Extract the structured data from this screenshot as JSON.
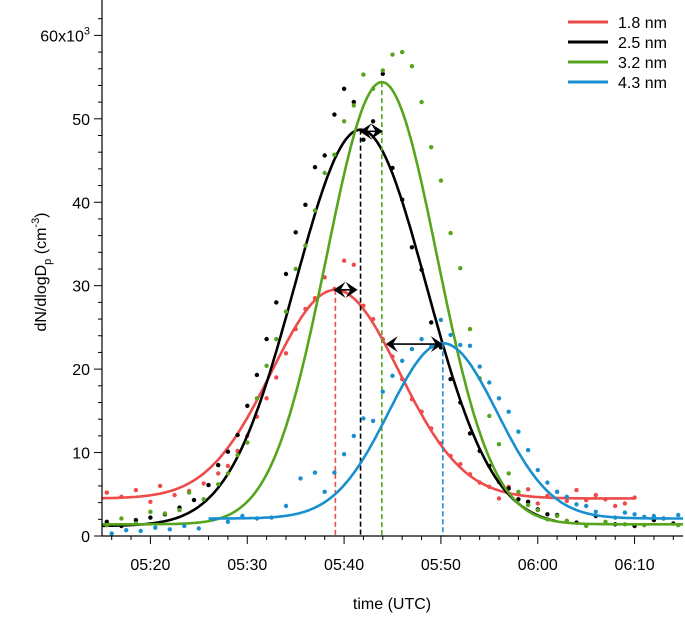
{
  "chart_data": {
    "type": "line",
    "title": "",
    "xlabel": "time (UTC)",
    "ylabel": "dN/dlogD",
    "ylabel_sub": "p",
    "ylabel_unit_open": " (cm",
    "ylabel_unit_sup": "-3",
    "ylabel_unit_close": ")",
    "xlim": [
      315,
      375
    ],
    "ylim": [
      0,
      64000
    ],
    "grid": false,
    "legend_position": "top-right",
    "x_ticks": [
      {
        "value": 320,
        "label": "05:20"
      },
      {
        "value": 330,
        "label": "05:30"
      },
      {
        "value": 340,
        "label": "05:40"
      },
      {
        "value": 350,
        "label": "05:50"
      },
      {
        "value": 360,
        "label": "06:00"
      },
      {
        "value": 370,
        "label": "06:10"
      }
    ],
    "y_ticks": [
      {
        "value": 0,
        "label": "0"
      },
      {
        "value": 10000,
        "label": "10"
      },
      {
        "value": 20000,
        "label": "20"
      },
      {
        "value": 30000,
        "label": "30"
      },
      {
        "value": 40000,
        "label": "40"
      },
      {
        "value": 50000,
        "label": "50"
      },
      {
        "value": 60000,
        "label": "60x10",
        "sup": "3"
      }
    ],
    "series": [
      {
        "name": "1.8 nm",
        "color": "#ee4b4b",
        "fit": {
          "baseline": 4500,
          "amplitude": 25000,
          "center": 339.1,
          "sigma": 6.6,
          "x_range": [
            315,
            370
          ]
        },
        "peak_time": 339.1,
        "points": [
          [
            315.5,
            5200
          ],
          [
            317,
            4700
          ],
          [
            318.5,
            5500
          ],
          [
            320,
            4100
          ],
          [
            321,
            6000
          ],
          [
            322.5,
            4900
          ],
          [
            324,
            5400
          ],
          [
            325.5,
            6300
          ],
          [
            327,
            7500
          ],
          [
            328,
            8400
          ],
          [
            329,
            10200
          ],
          [
            330,
            12000
          ],
          [
            331,
            14300
          ],
          [
            332,
            16500
          ],
          [
            333,
            19000
          ],
          [
            334,
            21900
          ],
          [
            335,
            24800
          ],
          [
            336,
            27200
          ],
          [
            337,
            28500
          ],
          [
            338,
            31000
          ],
          [
            339,
            29600
          ],
          [
            340,
            33000
          ],
          [
            341,
            32500
          ],
          [
            342,
            27600
          ],
          [
            343,
            26000
          ],
          [
            344,
            23600
          ],
          [
            345,
            21500
          ],
          [
            346,
            18800
          ],
          [
            347,
            16400
          ],
          [
            348,
            14900
          ],
          [
            349,
            12900
          ],
          [
            350,
            11100
          ],
          [
            351,
            9600
          ],
          [
            352,
            8600
          ],
          [
            353,
            7400
          ],
          [
            354,
            6400
          ],
          [
            355,
            5900
          ],
          [
            356,
            4500
          ],
          [
            357,
            5900
          ],
          [
            358,
            5000
          ],
          [
            359,
            5600
          ],
          [
            360,
            3900
          ],
          [
            361,
            4800
          ],
          [
            362,
            5300
          ],
          [
            363,
            4200
          ],
          [
            364,
            5500
          ],
          [
            365,
            4300
          ],
          [
            366,
            4900
          ],
          [
            367,
            4400
          ],
          [
            368,
            3600
          ],
          [
            369,
            3900
          ],
          [
            370,
            4600
          ]
        ]
      },
      {
        "name": "2.5 nm",
        "color": "#000000",
        "fit": {
          "baseline": 1200,
          "amplitude": 47500,
          "center": 341.7,
          "sigma": 6.8,
          "x_range": [
            315,
            362
          ]
        },
        "peak_time": 341.7,
        "points": [
          [
            315.5,
            1700
          ],
          [
            317,
            1200
          ],
          [
            318.5,
            1900
          ],
          [
            320,
            2200
          ],
          [
            321.5,
            2600
          ],
          [
            323,
            3400
          ],
          [
            324.5,
            4300
          ],
          [
            326,
            6100
          ],
          [
            327,
            8500
          ],
          [
            328,
            10100
          ],
          [
            329,
            12100
          ],
          [
            330,
            15600
          ],
          [
            331,
            19300
          ],
          [
            332,
            23600
          ],
          [
            333,
            28000
          ],
          [
            334,
            31400
          ],
          [
            335,
            36400
          ],
          [
            336,
            39700
          ],
          [
            337,
            44200
          ],
          [
            338,
            45600
          ],
          [
            339,
            50500
          ],
          [
            340,
            53600
          ],
          [
            341,
            52000
          ],
          [
            342,
            47500
          ],
          [
            343,
            49700
          ],
          [
            344,
            55400
          ],
          [
            345,
            44100
          ],
          [
            346,
            40300
          ],
          [
            347,
            34600
          ],
          [
            348,
            31900
          ],
          [
            349,
            25600
          ],
          [
            350,
            22600
          ],
          [
            351,
            18800
          ],
          [
            352,
            16000
          ],
          [
            353,
            12300
          ],
          [
            354,
            10200
          ],
          [
            355,
            8400
          ],
          [
            356,
            6500
          ],
          [
            357,
            5700
          ],
          [
            358,
            4400
          ],
          [
            359,
            4100
          ],
          [
            360,
            3200
          ],
          [
            361,
            2600
          ],
          [
            362,
            2500
          ],
          [
            363,
            1800
          ],
          [
            364,
            1600
          ],
          [
            366,
            2400
          ],
          [
            368,
            1400
          ],
          [
            370,
            1200
          ],
          [
            372,
            1900
          ],
          [
            374,
            1500
          ]
        ]
      },
      {
        "name": "3.2 nm",
        "color": "#56a51d",
        "fit": {
          "baseline": 1400,
          "amplitude": 53000,
          "center": 343.9,
          "sigma": 5.7,
          "x_range": [
            315,
            375
          ]
        },
        "peak_time": 343.9,
        "points": [
          [
            315.5,
            1300
          ],
          [
            317,
            2100
          ],
          [
            318.5,
            1500
          ],
          [
            320,
            2900
          ],
          [
            321.5,
            2700
          ],
          [
            323,
            3100
          ],
          [
            324,
            5200
          ],
          [
            325.5,
            4400
          ],
          [
            327,
            6200
          ],
          [
            328,
            7500
          ],
          [
            329,
            9700
          ],
          [
            330,
            11200
          ],
          [
            331,
            16500
          ],
          [
            332,
            20400
          ],
          [
            333,
            23600
          ],
          [
            334,
            26900
          ],
          [
            335,
            32000
          ],
          [
            336,
            34800
          ],
          [
            337,
            39000
          ],
          [
            338,
            43500
          ],
          [
            339,
            45700
          ],
          [
            340,
            49700
          ],
          [
            341,
            51600
          ],
          [
            342,
            55300
          ],
          [
            343,
            53600
          ],
          [
            344,
            55800
          ],
          [
            345,
            57700
          ],
          [
            346,
            58000
          ],
          [
            347,
            56300
          ],
          [
            348,
            52000
          ],
          [
            349,
            46600
          ],
          [
            350,
            42600
          ],
          [
            351,
            36300
          ],
          [
            352,
            32100
          ],
          [
            353,
            24800
          ],
          [
            354,
            18900
          ],
          [
            355,
            14400
          ],
          [
            356,
            11000
          ],
          [
            357,
            7500
          ],
          [
            358,
            5300
          ],
          [
            359,
            3700
          ],
          [
            360,
            3100
          ],
          [
            361,
            2000
          ],
          [
            362,
            2400
          ],
          [
            363,
            1800
          ],
          [
            365,
            1200
          ],
          [
            367,
            1700
          ],
          [
            369,
            1400
          ],
          [
            371,
            1300
          ],
          [
            373,
            2100
          ],
          [
            374.5,
            1300
          ]
        ]
      },
      {
        "name": "4.3 nm",
        "color": "#1a8fd0",
        "fit": {
          "baseline": 2100,
          "amplitude": 21000,
          "center": 350.2,
          "sigma": 5.6,
          "x_range": [
            326,
            375
          ]
        },
        "peak_time": 350.2,
        "points": [
          [
            316,
            300
          ],
          [
            317.5,
            700
          ],
          [
            319,
            600
          ],
          [
            320.5,
            1000
          ],
          [
            322,
            800
          ],
          [
            323.5,
            1200
          ],
          [
            325,
            900
          ],
          [
            326.5,
            2000
          ],
          [
            328,
            1700
          ],
          [
            329.5,
            2400
          ],
          [
            331,
            2100
          ],
          [
            332.5,
            2200
          ],
          [
            334,
            3600
          ],
          [
            335.5,
            6900
          ],
          [
            337,
            7600
          ],
          [
            338,
            5300
          ],
          [
            339,
            7600
          ],
          [
            340,
            9800
          ],
          [
            341,
            12000
          ],
          [
            342,
            14100
          ],
          [
            343,
            13800
          ],
          [
            344,
            17300
          ],
          [
            345,
            19200
          ],
          [
            346,
            21000
          ],
          [
            347,
            22400
          ],
          [
            348,
            23600
          ],
          [
            349,
            22700
          ],
          [
            350,
            25900
          ],
          [
            351,
            24100
          ],
          [
            352,
            22900
          ],
          [
            353,
            22800
          ],
          [
            354,
            20300
          ],
          [
            355,
            18400
          ],
          [
            356,
            16500
          ],
          [
            357,
            14900
          ],
          [
            358,
            12500
          ],
          [
            359,
            10300
          ],
          [
            360,
            7900
          ],
          [
            361,
            6400
          ],
          [
            362,
            5300
          ],
          [
            363,
            4700
          ],
          [
            364,
            3800
          ],
          [
            365,
            3600
          ],
          [
            366,
            2900
          ],
          [
            368,
            2200
          ],
          [
            369,
            2800
          ],
          [
            370,
            2600
          ],
          [
            371,
            2300
          ],
          [
            372,
            2400
          ],
          [
            373,
            2100
          ],
          [
            374.5,
            2500
          ]
        ]
      }
    ],
    "arrows": [
      {
        "x1": 338.9,
        "x2": 341.4,
        "y": 29500,
        "color": "#000000"
      },
      {
        "x1": 341.6,
        "x2": 344.0,
        "y": 48500,
        "color": "#000000"
      },
      {
        "x1": 344.3,
        "x2": 350.2,
        "y": 23000,
        "color": "#000000"
      }
    ]
  }
}
